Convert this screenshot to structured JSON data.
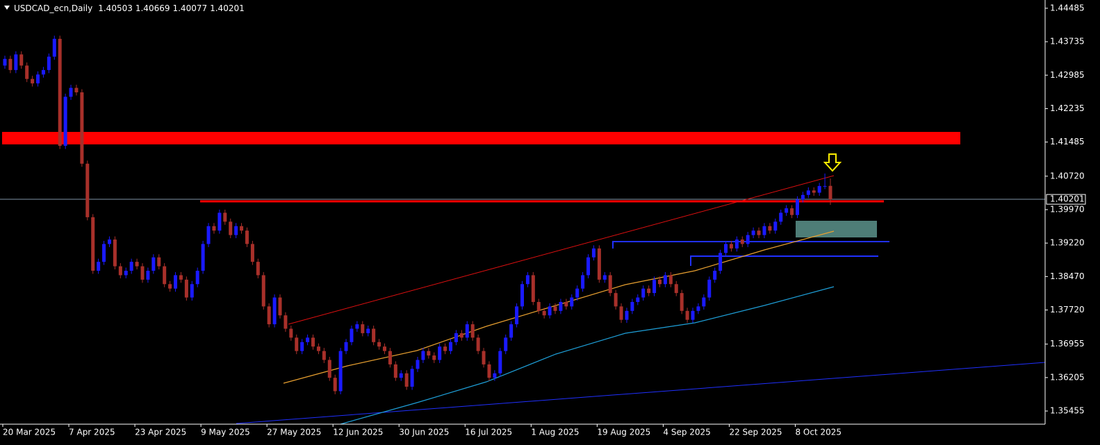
{
  "chart_data": {
    "type": "candlestick",
    "title": "USDCAD_ecn,Daily",
    "up_color": "#1a1aff",
    "down_color": "#a8302a",
    "background": "#000000",
    "grid": false,
    "ylim": [
      1.3516,
      1.4467
    ],
    "yticks": [
      1.44485,
      1.43735,
      1.42985,
      1.42235,
      1.41485,
      {
        "value": 1.4072,
        "label": "1.40720"
      },
      {
        "value": 1.3997,
        "label": "1.39970"
      },
      {
        "value": 1.3922,
        "label": "1.39220"
      },
      {
        "value": 1.3847,
        "label": "1.38470"
      },
      {
        "value": 1.3772,
        "label": "1.37720"
      },
      1.36955,
      1.36205,
      1.35455
    ],
    "categories": [
      "20 Mar 2025",
      null,
      null,
      null,
      null,
      null,
      null,
      null,
      null,
      null,
      null,
      null,
      "7 Apr 2025",
      null,
      null,
      null,
      null,
      null,
      null,
      null,
      null,
      null,
      null,
      null,
      "23 Apr 2025",
      null,
      null,
      null,
      null,
      null,
      null,
      null,
      null,
      null,
      null,
      null,
      "9 May 2025",
      null,
      null,
      null,
      null,
      null,
      null,
      null,
      null,
      null,
      null,
      null,
      "27 May 2025",
      null,
      null,
      null,
      null,
      null,
      null,
      null,
      null,
      null,
      null,
      null,
      "12 Jun 2025",
      null,
      null,
      null,
      null,
      null,
      null,
      null,
      null,
      null,
      null,
      null,
      "30 Jun 2025",
      null,
      null,
      null,
      null,
      null,
      null,
      null,
      null,
      null,
      null,
      null,
      "16 Jul 2025",
      null,
      null,
      null,
      null,
      null,
      null,
      null,
      null,
      null,
      null,
      null,
      "1 Aug 2025",
      null,
      null,
      null,
      null,
      null,
      null,
      null,
      null,
      null,
      null,
      null,
      "19 Aug 2025",
      null,
      null,
      null,
      null,
      null,
      null,
      null,
      null,
      null,
      null,
      null,
      "4 Sep 2025",
      null,
      null,
      null,
      null,
      null,
      null,
      null,
      null,
      null,
      null,
      null,
      "22 Sep 2025",
      null,
      null,
      null,
      null,
      null,
      null,
      null,
      null,
      null,
      null,
      null,
      "8 Oct 2025",
      null,
      null,
      null,
      null,
      null,
      null
    ],
    "open": [
      1.432,
      1.4335,
      1.431,
      1.4345,
      1.432,
      1.429,
      1.428,
      1.43,
      1.431,
      1.434,
      1.438,
      1.414,
      1.425,
      1.427,
      1.426,
      1.41,
      1.398,
      1.386,
      1.388,
      1.392,
      1.393,
      1.387,
      1.385,
      1.386,
      1.388,
      1.387,
      1.384,
      1.386,
      1.389,
      1.387,
      1.383,
      1.382,
      1.385,
      1.384,
      1.38,
      1.383,
      1.386,
      1.392,
      1.396,
      1.395,
      1.399,
      1.397,
      1.394,
      1.396,
      1.395,
      1.392,
      1.388,
      1.385,
      1.378,
      1.374,
      1.38,
      1.376,
      1.373,
      1.371,
      1.368,
      1.37,
      1.371,
      1.369,
      1.368,
      1.366,
      1.362,
      1.359,
      1.368,
      1.37,
      1.373,
      1.374,
      1.372,
      1.373,
      1.37,
      1.369,
      1.368,
      1.365,
      1.362,
      1.363,
      1.36,
      1.364,
      1.366,
      1.368,
      1.367,
      1.366,
      1.369,
      1.368,
      1.37,
      1.372,
      1.371,
      1.374,
      1.371,
      1.368,
      1.365,
      1.362,
      1.363,
      1.368,
      1.371,
      1.374,
      1.378,
      1.383,
      1.385,
      1.379,
      1.377,
      1.376,
      1.378,
      1.377,
      1.379,
      1.378,
      1.38,
      1.382,
      1.385,
      1.389,
      1.391,
      1.384,
      1.385,
      1.381,
      1.378,
      1.375,
      1.377,
      1.379,
      1.38,
      1.382,
      1.381,
      1.384,
      1.383,
      1.385,
      1.383,
      1.381,
      1.377,
      1.375,
      1.377,
      1.378,
      1.38,
      1.384,
      1.386,
      1.39,
      1.392,
      1.391,
      1.393,
      1.392,
      1.394,
      1.395,
      1.394,
      1.396,
      1.395,
      1.397,
      1.399,
      1.4,
      1.3985,
      1.402,
      1.403,
      1.404,
      1.4035,
      1.405,
      1.40503
    ],
    "high": [
      1.4342,
      1.4342,
      1.4352,
      1.4352,
      1.4327,
      1.4297,
      1.4307,
      1.4317,
      1.4347,
      1.4387,
      1.4387,
      1.4257,
      1.4277,
      1.4277,
      1.4267,
      1.4107,
      1.3987,
      1.3887,
      1.3927,
      1.3937,
      1.3937,
      1.3877,
      1.3867,
      1.3887,
      1.3887,
      1.3877,
      1.3867,
      1.3897,
      1.3897,
      1.3877,
      1.3837,
      1.3857,
      1.3857,
      1.3847,
      1.3837,
      1.3867,
      1.3927,
      1.3967,
      1.3967,
      1.3997,
      1.3997,
      1.3977,
      1.3967,
      1.3967,
      1.3957,
      1.3927,
      1.3887,
      1.3857,
      1.3787,
      1.3807,
      1.3807,
      1.3767,
      1.3737,
      1.3717,
      1.3707,
      1.3717,
      1.3717,
      1.3697,
      1.3687,
      1.3667,
      1.3627,
      1.3687,
      1.3707,
      1.3737,
      1.3747,
      1.3747,
      1.3737,
      1.3737,
      1.3707,
      1.3697,
      1.3687,
      1.3657,
      1.3637,
      1.3637,
      1.3647,
      1.3667,
      1.3687,
      1.3687,
      1.3677,
      1.3697,
      1.3697,
      1.3707,
      1.3727,
      1.3727,
      1.3747,
      1.3747,
      1.3717,
      1.3687,
      1.3657,
      1.3637,
      1.3687,
      1.3717,
      1.3747,
      1.3787,
      1.3837,
      1.3857,
      1.3857,
      1.3797,
      1.3777,
      1.3787,
      1.3787,
      1.3797,
      1.3797,
      1.3807,
      1.3827,
      1.3857,
      1.3897,
      1.3917,
      1.3917,
      1.3857,
      1.3857,
      1.3817,
      1.3787,
      1.3777,
      1.3797,
      1.3807,
      1.3827,
      1.3827,
      1.3847,
      1.3847,
      1.3857,
      1.3857,
      1.3837,
      1.3817,
      1.3777,
      1.3777,
      1.3787,
      1.3807,
      1.3847,
      1.3867,
      1.3907,
      1.3927,
      1.3927,
      1.3937,
      1.3937,
      1.3947,
      1.3957,
      1.3957,
      1.3967,
      1.3967,
      1.3977,
      1.3997,
      1.4007,
      1.4007,
      1.4027,
      1.4037,
      1.4047,
      1.4047,
      1.4057,
      1.4078,
      1.40669
    ],
    "low": [
      1.4313,
      1.4303,
      1.4303,
      1.4313,
      1.4283,
      1.4273,
      1.4273,
      1.4293,
      1.4303,
      1.4333,
      1.4133,
      1.4133,
      1.4243,
      1.4253,
      1.4093,
      1.3973,
      1.3853,
      1.3853,
      1.3873,
      1.3913,
      1.3863,
      1.3843,
      1.3843,
      1.3853,
      1.3863,
      1.3833,
      1.3833,
      1.3853,
      1.3863,
      1.3823,
      1.3813,
      1.3813,
      1.3833,
      1.3793,
      1.3793,
      1.3823,
      1.3853,
      1.3913,
      1.3943,
      1.3943,
      1.3963,
      1.3933,
      1.3933,
      1.3943,
      1.3913,
      1.3873,
      1.3843,
      1.3773,
      1.3733,
      1.3733,
      1.3753,
      1.3723,
      1.3703,
      1.3673,
      1.3673,
      1.3693,
      1.3683,
      1.3673,
      1.3653,
      1.3613,
      1.3583,
      1.3583,
      1.3673,
      1.3693,
      1.3723,
      1.3713,
      1.3713,
      1.3693,
      1.3683,
      1.3673,
      1.3643,
      1.3613,
      1.3613,
      1.3593,
      1.3593,
      1.3633,
      1.3653,
      1.3663,
      1.3653,
      1.3653,
      1.3673,
      1.3673,
      1.3693,
      1.3703,
      1.3703,
      1.3703,
      1.3673,
      1.3643,
      1.3613,
      1.3613,
      1.3623,
      1.3673,
      1.3703,
      1.3733,
      1.3773,
      1.3823,
      1.3783,
      1.3763,
      1.3753,
      1.3753,
      1.3763,
      1.3763,
      1.3773,
      1.3773,
      1.3793,
      1.3813,
      1.3843,
      1.3883,
      1.3833,
      1.3833,
      1.3803,
      1.3773,
      1.3743,
      1.3743,
      1.3763,
      1.3783,
      1.3793,
      1.3803,
      1.3803,
      1.3823,
      1.3823,
      1.3823,
      1.3803,
      1.3763,
      1.3743,
      1.3743,
      1.3763,
      1.3773,
      1.3793,
      1.3833,
      1.3853,
      1.3893,
      1.3903,
      1.3903,
      1.3913,
      1.3913,
      1.3933,
      1.3933,
      1.3933,
      1.3943,
      1.3943,
      1.3963,
      1.3983,
      1.3978,
      1.3978,
      1.4013,
      1.4023,
      1.4028,
      1.4028,
      1.4043,
      1.40077
    ],
    "close": [
      1.4335,
      1.431,
      1.4345,
      1.432,
      1.429,
      1.428,
      1.43,
      1.431,
      1.434,
      1.438,
      1.414,
      1.425,
      1.427,
      1.426,
      1.41,
      1.398,
      1.386,
      1.388,
      1.392,
      1.393,
      1.387,
      1.385,
      1.386,
      1.388,
      1.387,
      1.384,
      1.386,
      1.389,
      1.387,
      1.383,
      1.382,
      1.385,
      1.384,
      1.38,
      1.383,
      1.386,
      1.392,
      1.396,
      1.395,
      1.399,
      1.397,
      1.394,
      1.396,
      1.395,
      1.392,
      1.388,
      1.385,
      1.378,
      1.374,
      1.38,
      1.376,
      1.373,
      1.371,
      1.368,
      1.37,
      1.371,
      1.369,
      1.368,
      1.366,
      1.362,
      1.359,
      1.368,
      1.37,
      1.373,
      1.374,
      1.372,
      1.373,
      1.37,
      1.369,
      1.368,
      1.365,
      1.362,
      1.363,
      1.36,
      1.364,
      1.366,
      1.368,
      1.367,
      1.366,
      1.369,
      1.368,
      1.37,
      1.372,
      1.371,
      1.374,
      1.371,
      1.368,
      1.365,
      1.362,
      1.363,
      1.368,
      1.371,
      1.374,
      1.378,
      1.383,
      1.385,
      1.379,
      1.377,
      1.376,
      1.378,
      1.377,
      1.379,
      1.378,
      1.38,
      1.382,
      1.385,
      1.389,
      1.391,
      1.384,
      1.385,
      1.381,
      1.378,
      1.375,
      1.377,
      1.379,
      1.38,
      1.382,
      1.381,
      1.384,
      1.383,
      1.385,
      1.383,
      1.381,
      1.377,
      1.375,
      1.377,
      1.378,
      1.38,
      1.384,
      1.386,
      1.39,
      1.392,
      1.391,
      1.393,
      1.392,
      1.394,
      1.395,
      1.394,
      1.396,
      1.395,
      1.397,
      1.399,
      1.4,
      1.3985,
      1.402,
      1.403,
      1.404,
      1.4035,
      1.405,
      1.405,
      1.40201
    ]
  }
}
